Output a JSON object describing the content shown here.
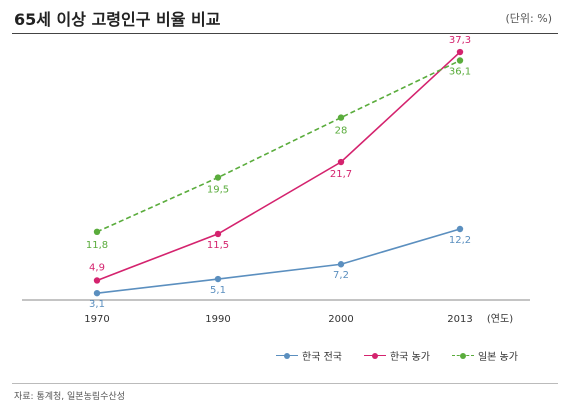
{
  "header": {
    "title": "65세 이상 고령인구 비율 비교",
    "unit": "(단위: %)"
  },
  "footer": {
    "source": "자료: 통계청, 일본농림수산성"
  },
  "chart_data": {
    "type": "line",
    "title": "65세 이상 고령인구 비율 비교",
    "xlabel": "(연도)",
    "ylabel": "",
    "x": [
      "1970",
      "1990",
      "2000",
      "2013"
    ],
    "ylim": [
      0,
      40
    ],
    "grid": false,
    "legend_position": "bottom-right",
    "series": [
      {
        "name": "한국 전국",
        "values": [
          3.1,
          5.1,
          7.2,
          12.2
        ],
        "labels": [
          "3,1",
          "5,1",
          "7,2",
          "12,2"
        ],
        "color": "#5b8fbf",
        "dashed": false
      },
      {
        "name": "한국 농가",
        "values": [
          4.9,
          11.5,
          21.7,
          37.3
        ],
        "labels": [
          "4,9",
          "11,5",
          "21,7",
          "37,3"
        ],
        "color": "#d4236e",
        "dashed": false
      },
      {
        "name": "일본 농가",
        "values": [
          11.8,
          19.5,
          28,
          36.1
        ],
        "labels": [
          "11,8",
          "19,5",
          "28",
          "36,1"
        ],
        "color": "#5aac3c",
        "dashed": true
      }
    ]
  }
}
